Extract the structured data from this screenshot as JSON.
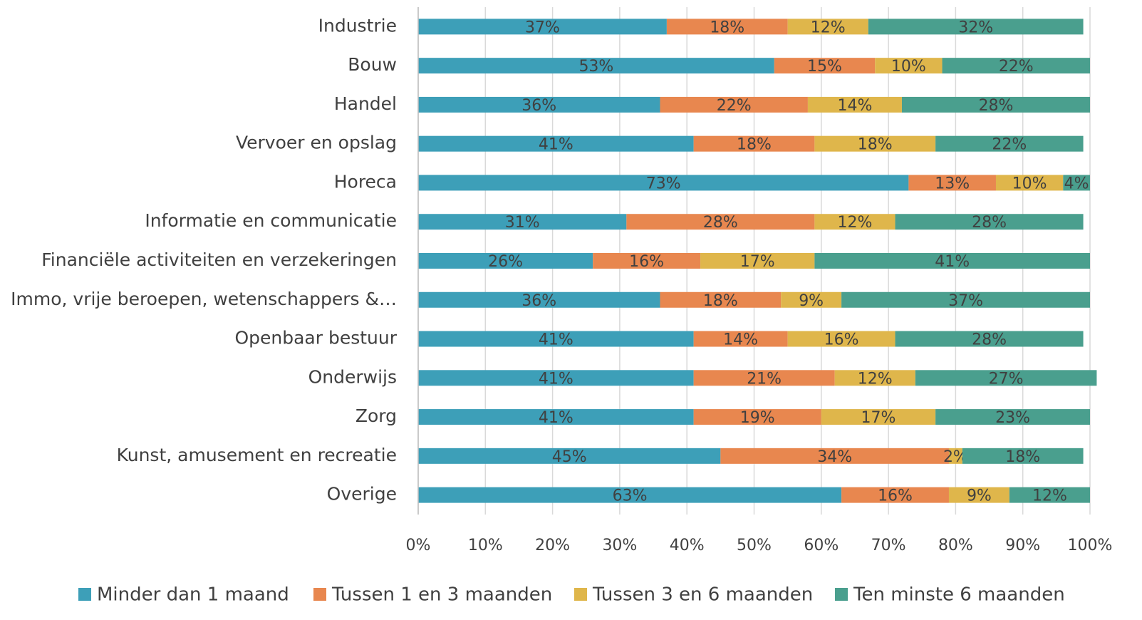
{
  "chart_data": {
    "type": "stacked_bar_horizontal",
    "categories": [
      "Industrie",
      "Bouw",
      "Handel",
      "Vervoer en opslag",
      "Horeca",
      "Informatie en communicatie",
      "Financiële activiteiten en verzekeringen",
      "Immo, vrije beroepen, wetenschappers &…",
      "Openbaar bestuur",
      "Onderwijs",
      "Zorg",
      "Kunst, amusement en recreatie",
      "Overige"
    ],
    "series": [
      {
        "name": "Minder dan 1 maand",
        "color": "#3d9fb8",
        "values": [
          37,
          53,
          36,
          41,
          73,
          31,
          26,
          36,
          41,
          41,
          41,
          45,
          63
        ],
        "value_labels": [
          "37%",
          "53%",
          "36%",
          "41%",
          "73%",
          "31%",
          "26%",
          "36%",
          "41%",
          "41%",
          "41%",
          "45%",
          "63%"
        ]
      },
      {
        "name": "Tussen 1 en 3 maanden",
        "color": "#e8874f",
        "values": [
          18,
          15,
          22,
          18,
          13,
          28,
          16,
          18,
          14,
          21,
          19,
          34,
          16
        ],
        "value_labels": [
          "18%",
          "15%",
          "22%",
          "18%",
          "13%",
          "28%",
          "16%",
          "18%",
          "14%",
          "21%",
          "19%",
          "34%",
          "16%"
        ]
      },
      {
        "name": "Tussen 3 en 6 maanden",
        "color": "#dfb64b",
        "values": [
          12,
          10,
          14,
          18,
          10,
          12,
          17,
          9,
          16,
          12,
          17,
          2,
          9
        ],
        "value_labels": [
          "12%",
          "10%",
          "14%",
          "18%",
          "10%",
          "12%",
          "17%",
          "9%",
          "16%",
          "12%",
          "17%",
          "2%",
          "9%"
        ]
      },
      {
        "name": "Ten minste 6 maanden",
        "color": "#4a9f8e",
        "values": [
          32,
          22,
          28,
          22,
          4,
          28,
          41,
          37,
          28,
          27,
          23,
          18,
          12
        ],
        "value_labels": [
          "32%",
          "22%",
          "28%",
          "22%",
          "4%",
          "28%",
          "41%",
          "37%",
          "28%",
          "27%",
          "23%",
          "18%",
          "12%"
        ]
      }
    ],
    "xlim": [
      0,
      100
    ],
    "xticks": [
      {
        "value": 0,
        "label": "0%"
      },
      {
        "value": 10,
        "label": "10%"
      },
      {
        "value": 20,
        "label": "20%"
      },
      {
        "value": 30,
        "label": "30%"
      },
      {
        "value": 40,
        "label": "40%"
      },
      {
        "value": 50,
        "label": "50%"
      },
      {
        "value": 60,
        "label": "60%"
      },
      {
        "value": 70,
        "label": "70%"
      },
      {
        "value": 80,
        "label": "80%"
      },
      {
        "value": 90,
        "label": "90%"
      },
      {
        "value": 100,
        "label": "100%"
      }
    ],
    "grid": true,
    "legend": "bottom"
  }
}
